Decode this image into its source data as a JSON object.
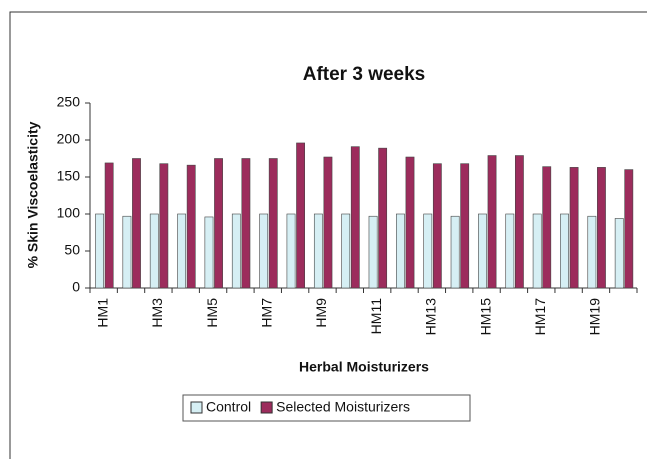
{
  "chart_data": {
    "type": "bar",
    "title": "After 3 weeks",
    "x_label": "Herbal Moisturizers",
    "y_label": "% Skin Viscoelasticity",
    "categories": [
      "HM1",
      null,
      "HM3",
      null,
      "HM5",
      null,
      "HM7",
      null,
      "HM9",
      null,
      "HM11",
      null,
      "HM13",
      null,
      "HM15",
      null,
      "HM17",
      null,
      "HM19",
      null
    ],
    "series": [
      {
        "name": "Control",
        "color": "#d6eff4",
        "values": [
          100,
          97,
          100,
          100,
          96,
          100,
          100,
          100,
          100,
          100,
          97,
          100,
          100,
          97,
          100,
          100,
          100,
          100,
          97,
          94
        ]
      },
      {
        "name": "Selected Moisturizers",
        "color": "#9c2c5c",
        "values": [
          169,
          175,
          168,
          166,
          175,
          175,
          175,
          196,
          177,
          191,
          189,
          177,
          168,
          168,
          179,
          179,
          164,
          163,
          163,
          160
        ]
      }
    ],
    "ylim": [
      0,
      250
    ],
    "yticks": [
      0,
      50,
      100,
      150,
      200,
      250
    ],
    "grid": false,
    "legend": "bottom"
  }
}
